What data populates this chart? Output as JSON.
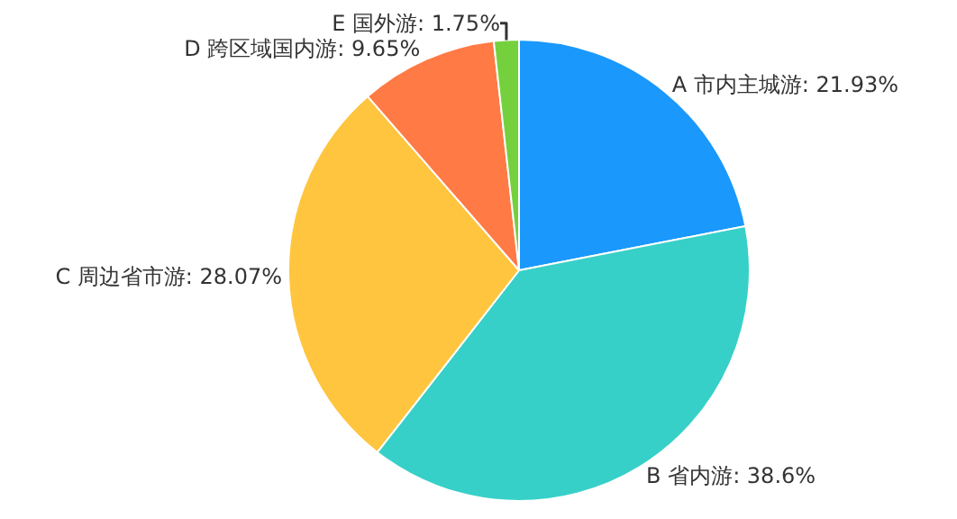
{
  "chart_data": {
    "type": "pie",
    "categories": [
      "A 市内主城游",
      "B 省内游",
      "C 周边省市游",
      "D 跨区域国内游",
      "E 国外游"
    ],
    "values": [
      21.93,
      38.6,
      28.07,
      9.65,
      1.75
    ],
    "value_labels": [
      "21.93%",
      "38.6%",
      "28.07%",
      "9.65%",
      "1.75%"
    ],
    "colors": [
      "#1a98fc",
      "#37d0c8",
      "#ffc53f",
      "#ff7a45",
      "#74d13d"
    ],
    "legend": false
  }
}
